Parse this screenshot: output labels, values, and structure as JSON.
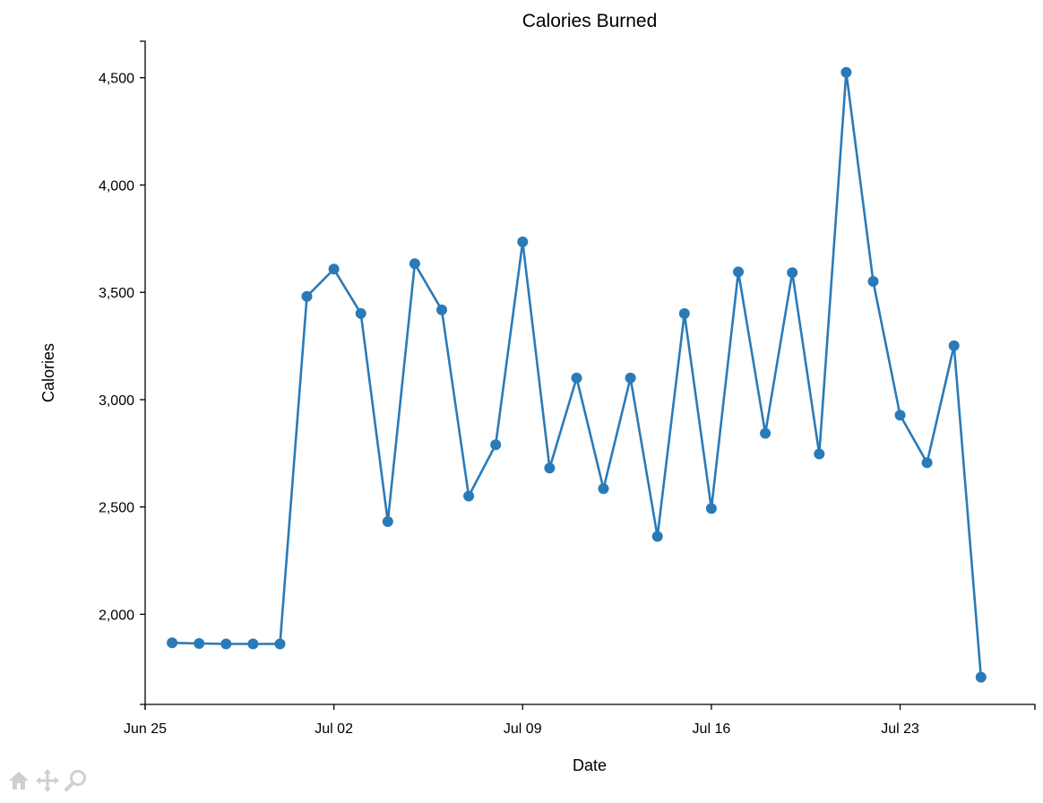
{
  "chart_data": {
    "type": "line",
    "title": "Calories Burned",
    "xlabel": "Date",
    "ylabel": "Calories",
    "x_ticks": [
      "Jun 25",
      "Jul 02",
      "Jul 09",
      "Jul 16",
      "Jul 23"
    ],
    "x_tick_dates": [
      "2017-06-25",
      "2017-07-02",
      "2017-07-09",
      "2017-07-16",
      "2017-07-23"
    ],
    "y_ticks": [
      "2,000",
      "2,500",
      "3,000",
      "3,500",
      "4,000",
      "4,500"
    ],
    "y_tick_values": [
      2000,
      2500,
      3000,
      3500,
      4000,
      4500
    ],
    "xlim": [
      "2017-06-25",
      "2017-07-28"
    ],
    "ylim": [
      1580,
      4670
    ],
    "grid": false,
    "series": [
      {
        "x": [
          "2017-06-26",
          "2017-06-27",
          "2017-06-28",
          "2017-06-29",
          "2017-06-30",
          "2017-07-01",
          "2017-07-02",
          "2017-07-03",
          "2017-07-04",
          "2017-07-05",
          "2017-07-06",
          "2017-07-07",
          "2017-07-08",
          "2017-07-09",
          "2017-07-10",
          "2017-07-11",
          "2017-07-12",
          "2017-07-13",
          "2017-07-14",
          "2017-07-15",
          "2017-07-16",
          "2017-07-17",
          "2017-07-18",
          "2017-07-19",
          "2017-07-20",
          "2017-07-21",
          "2017-07-22",
          "2017-07-23",
          "2017-07-24",
          "2017-07-25",
          "2017-07-26"
        ],
        "values": [
          1867,
          1864,
          1862,
          1862,
          1862,
          3481,
          3608,
          3402,
          2432,
          3633,
          3418,
          2551,
          2790,
          3735,
          2681,
          3101,
          2585,
          3101,
          2363,
          3401,
          2493,
          3595,
          2843,
          3592,
          2747,
          4525,
          3551,
          2928,
          2706,
          3251,
          1707
        ],
        "color": "#2a7ab8"
      }
    ]
  },
  "toolbar": {
    "icons": [
      "home-icon",
      "pan-icon",
      "zoom-icon"
    ]
  }
}
